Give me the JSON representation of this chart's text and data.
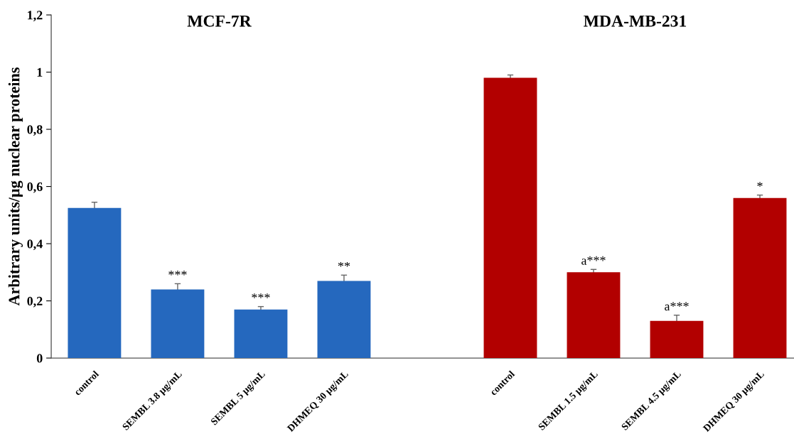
{
  "chart_data": {
    "type": "bar",
    "ylabel": "Arbitrary units/µg nuclear proteins",
    "categories": [
      "control",
      "SEMBL 3.8 µg/mL",
      "SEMBL 5 µg/mL",
      "DHMEQ 30 µg/mL",
      null,
      "control",
      "SEMBL 1.5 µg/mL",
      "SEMBL 4.5 µg/mL",
      "DHMEQ 30 µg/mL"
    ],
    "series": [
      {
        "color": "#2568be",
        "values": [
          0.525,
          0.24,
          0.17,
          0.27,
          null,
          null,
          null,
          null,
          null
        ],
        "errors": [
          0.02,
          0.02,
          0.01,
          0.02,
          null,
          null,
          null,
          null,
          null
        ],
        "value_labels": [
          null,
          "***",
          "***",
          "**",
          null,
          null,
          null,
          null,
          null
        ]
      },
      {
        "color": "#b20000",
        "values": [
          null,
          null,
          null,
          null,
          null,
          0.98,
          0.3,
          0.13,
          0.56
        ],
        "errors": [
          null,
          null,
          null,
          null,
          null,
          0.01,
          0.01,
          0.02,
          0.01
        ],
        "value_labels": [
          null,
          null,
          null,
          null,
          null,
          null,
          "a***",
          "a***",
          "*"
        ]
      }
    ],
    "ylim": [
      0,
      1.2
    ],
    "yticks": [
      0,
      {
        "value": 0.2,
        "label": "0,2"
      },
      {
        "value": 0.4,
        "label": "0,4"
      },
      {
        "value": 0.6,
        "label": "0,6"
      },
      {
        "value": 0.8,
        "label": "0,8"
      },
      1,
      {
        "value": 1.2,
        "label": "1,2"
      }
    ],
    "annotations": [
      "MCF-7R",
      "MDA-MB-231"
    ],
    "grid": false,
    "legend": false
  }
}
